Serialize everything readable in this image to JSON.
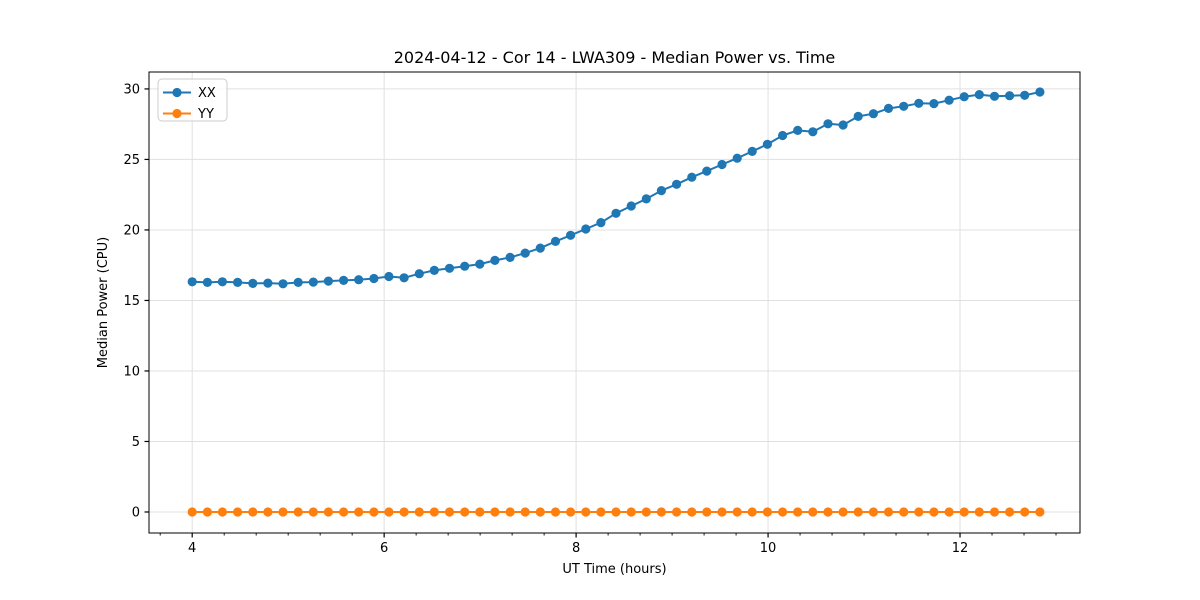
{
  "chart_data": {
    "type": "line",
    "title": "2024-04-12 - Cor 14 - LWA309 - Median Power vs. Time",
    "xlabel": "UT Time (hours)",
    "ylabel": "Median Power (CPU)",
    "xlim": [
      3.55,
      13.25
    ],
    "ylim": [
      -1.49,
      31.2
    ],
    "x_major_ticks": [
      4,
      6,
      8,
      10,
      12
    ],
    "x_minor_tick_step": 0.3333333,
    "y_major_ticks": [
      0,
      5,
      10,
      15,
      20,
      25,
      30
    ],
    "grid": "major",
    "grid_color": "#e0e0e0",
    "spine_color": "#000000",
    "legend_position": "upper left",
    "x": [
      4.0,
      4.158,
      4.315,
      4.473,
      4.631,
      4.789,
      4.946,
      5.104,
      5.262,
      5.419,
      5.577,
      5.735,
      5.893,
      6.05,
      6.208,
      6.366,
      6.523,
      6.681,
      6.839,
      6.997,
      7.154,
      7.312,
      7.47,
      7.627,
      7.785,
      7.943,
      8.101,
      8.258,
      8.416,
      8.574,
      8.731,
      8.889,
      9.047,
      9.205,
      9.362,
      9.52,
      9.678,
      9.835,
      9.993,
      10.151,
      10.309,
      10.466,
      10.624,
      10.782,
      10.939,
      11.097,
      11.255,
      11.413,
      11.57,
      11.728,
      11.886,
      12.043,
      12.201,
      12.359,
      12.517,
      12.674,
      12.832
    ],
    "series": [
      {
        "name": "XX",
        "color": "#1f77b4",
        "marker": "circle",
        "values": [
          16.32,
          16.28,
          16.32,
          16.28,
          16.21,
          16.23,
          16.18,
          16.28,
          16.3,
          16.37,
          16.42,
          16.47,
          16.56,
          16.7,
          16.61,
          16.9,
          17.13,
          17.28,
          17.43,
          17.58,
          17.84,
          18.05,
          18.36,
          18.71,
          19.19,
          19.62,
          20.07,
          20.52,
          21.18,
          21.7,
          22.2,
          22.79,
          23.24,
          23.74,
          24.17,
          24.64,
          25.09,
          25.57,
          26.07,
          26.7,
          27.06,
          26.96,
          27.53,
          27.44,
          28.05,
          28.24,
          28.62,
          28.77,
          28.98,
          28.96,
          29.2,
          29.45,
          29.6,
          29.48,
          29.52,
          29.55,
          29.78
        ]
      },
      {
        "name": "YY",
        "color": "#ff7f0e",
        "marker": "circle",
        "values": [
          0.0,
          0.0,
          0.0,
          0.0,
          0.0,
          0.0,
          0.0,
          0.0,
          0.0,
          0.0,
          0.0,
          0.0,
          0.0,
          0.0,
          0.0,
          0.0,
          0.0,
          0.0,
          0.0,
          0.0,
          0.0,
          0.0,
          0.0,
          0.0,
          0.0,
          0.0,
          0.0,
          0.0,
          0.0,
          0.0,
          0.0,
          0.0,
          0.0,
          0.0,
          0.0,
          0.0,
          0.0,
          0.0,
          0.0,
          0.0,
          0.0,
          0.0,
          0.0,
          0.0,
          0.0,
          0.0,
          0.0,
          0.0,
          0.0,
          0.0,
          0.0,
          0.0,
          0.0,
          0.0,
          0.0,
          0.0,
          0.0
        ]
      }
    ]
  }
}
